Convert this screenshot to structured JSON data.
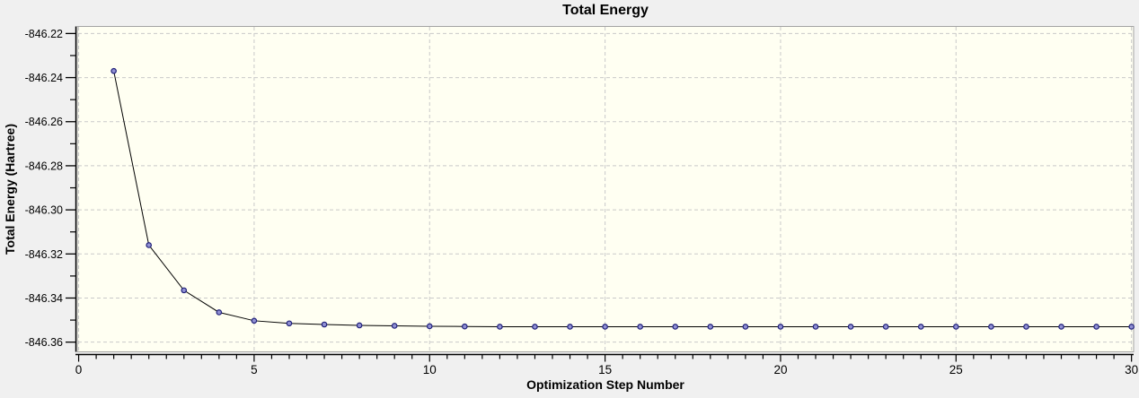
{
  "window": {
    "background": "#f0f0f0"
  },
  "chart_data": {
    "type": "line",
    "title": "Total Energy",
    "xlabel": "Optimization Step Number",
    "ylabel": "Total Energy (Hartree)",
    "x": [
      1,
      2,
      3,
      4,
      5,
      6,
      7,
      8,
      9,
      10,
      11,
      12,
      13,
      14,
      15,
      16,
      17,
      18,
      19,
      20,
      21,
      22,
      23,
      24,
      25,
      26,
      27,
      28,
      29,
      30
    ],
    "values": [
      -846.237,
      -846.316,
      -846.3365,
      -846.3465,
      -846.3503,
      -846.3515,
      -846.352,
      -846.3524,
      -846.3526,
      -846.3528,
      -846.3529,
      -846.353,
      -846.353,
      -846.353,
      -846.353,
      -846.353,
      -846.353,
      -846.353,
      -846.353,
      -846.353,
      -846.353,
      -846.353,
      -846.353,
      -846.353,
      -846.353,
      -846.353,
      -846.353,
      -846.353,
      -846.353,
      -846.353
    ],
    "xlim": [
      -0.04,
      30.06
    ],
    "ylim": [
      -846.3642,
      -846.217
    ],
    "x_major_ticks": [
      0,
      5,
      10,
      15,
      20,
      25,
      30
    ],
    "x_tick_labels": [
      "0",
      "5",
      "10",
      "15",
      "20",
      "25",
      "30"
    ],
    "x_minor_step": 0.5,
    "y_major_ticks": [
      -846.22,
      -846.24,
      -846.26,
      -846.28,
      -846.3,
      -846.32,
      -846.34,
      -846.36
    ],
    "y_tick_labels": [
      "-846.22",
      "-846.24",
      "-846.26",
      "-846.28",
      "-846.30",
      "-846.32",
      "-846.34",
      "-846.36"
    ],
    "y_minor_ticks": [
      -846.23,
      -846.25,
      -846.27,
      -846.29,
      -846.31,
      -846.33,
      -846.35
    ],
    "grid": "dashed",
    "legend": "none",
    "colors": {
      "page_bg": "#f0f0f0",
      "plot_bg": "#fffff2",
      "grid": "#c9c9c9",
      "frame": "#a3a3a3",
      "axis": "#000000",
      "line": "#000000",
      "marker_fill": "#9191d4",
      "marker_stroke": "#20207a",
      "text": "#000000"
    }
  }
}
